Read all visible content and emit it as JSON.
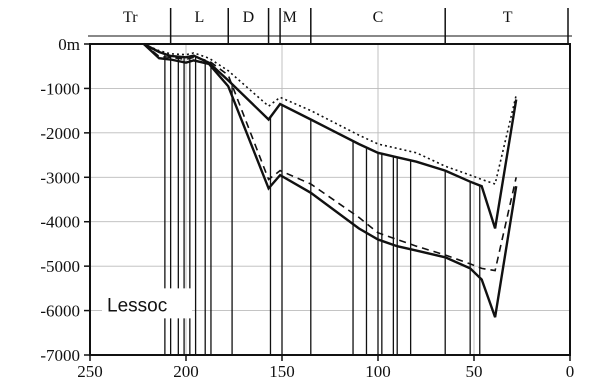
{
  "chart_data": {
    "type": "line",
    "title": "",
    "annotation": "Lessoc",
    "xlabel": "",
    "ylabel": "",
    "xlim": [
      250,
      0
    ],
    "ylim": [
      -7000,
      0
    ],
    "x_reversed": true,
    "grid": true,
    "x_ticks": [
      250,
      200,
      150,
      100,
      50,
      0
    ],
    "y_ticks": [
      0,
      -1000,
      -2000,
      -3000,
      -4000,
      -5000,
      -6000,
      -7000
    ],
    "y_tick_labels": [
      "0m",
      "-1000",
      "-2000",
      "-3000",
      "-4000",
      "-5000",
      "-6000",
      "-7000"
    ],
    "periods": [
      {
        "label": "Tr",
        "from": 250,
        "to": 208
      },
      {
        "label": "L",
        "from": 208,
        "to": 178
      },
      {
        "label": "D",
        "from": 178,
        "to": 157
      },
      {
        "label": "M",
        "from": 157,
        "to": 135
      },
      {
        "label": "C",
        "from": 135,
        "to": 65
      },
      {
        "label": "T",
        "from": 65,
        "to": 0
      }
    ],
    "period_boundaries": [
      208,
      178,
      157,
      151,
      135,
      65
    ],
    "series": [
      {
        "style": "solid",
        "x": [
          222,
          214,
          208,
          200,
          196,
          188,
          178,
          157,
          151,
          135,
          110,
          100,
          90,
          80,
          65,
          52,
          46,
          39,
          28
        ],
        "values": [
          0,
          -180,
          -270,
          -300,
          -260,
          -420,
          -820,
          -1700,
          -1350,
          -1700,
          -2250,
          -2450,
          -2550,
          -2650,
          -2850,
          -3100,
          -3200,
          -4150,
          -1250
        ]
      },
      {
        "style": "dotted",
        "x": [
          222,
          214,
          208,
          200,
          196,
          188,
          178,
          157,
          151,
          135,
          110,
          100,
          90,
          80,
          65,
          52,
          46,
          39,
          28
        ],
        "values": [
          0,
          -150,
          -220,
          -240,
          -200,
          -320,
          -600,
          -1400,
          -1200,
          -1500,
          -2050,
          -2250,
          -2350,
          -2450,
          -2750,
          -2950,
          -3050,
          -3150,
          -1150
        ]
      },
      {
        "style": "solid",
        "x": [
          222,
          214,
          208,
          200,
          196,
          188,
          178,
          157,
          151,
          135,
          110,
          100,
          90,
          80,
          65,
          52,
          46,
          39,
          28
        ],
        "values": [
          0,
          -320,
          -350,
          -420,
          -370,
          -450,
          -950,
          -3250,
          -2950,
          -3350,
          -4150,
          -4400,
          -4550,
          -4650,
          -4800,
          -5050,
          -5300,
          -6150,
          -3200
        ]
      },
      {
        "style": "dashed",
        "x": [
          222,
          214,
          208,
          200,
          196,
          188,
          178,
          157,
          151,
          135,
          110,
          100,
          90,
          80,
          65,
          52,
          46,
          39,
          28
        ],
        "values": [
          0,
          -280,
          -300,
          -350,
          -300,
          -380,
          -700,
          -3050,
          -2850,
          -3150,
          -3900,
          -4250,
          -4400,
          -4550,
          -4750,
          -4950,
          -5050,
          -5100,
          -3000
        ]
      }
    ],
    "wells": [
      211,
      208,
      204,
      201,
      198,
      195,
      190,
      187,
      176,
      156,
      150,
      135,
      113,
      106,
      100,
      98,
      92,
      90,
      83,
      65,
      52,
      47
    ]
  }
}
